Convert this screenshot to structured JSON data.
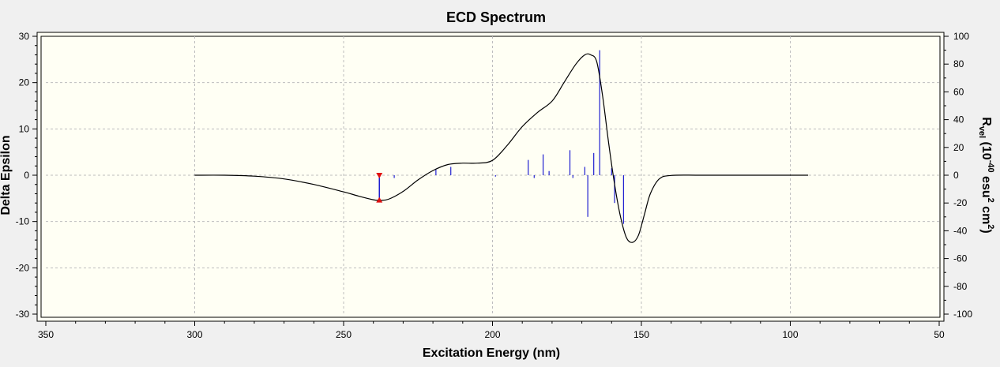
{
  "chart_data": {
    "type": "line",
    "title": "ECD Spectrum",
    "xlabel": "Excitation Energy (nm)",
    "ylabel_left": "Delta Epsilon",
    "ylabel_right": {
      "base": "R",
      "sub": "vel",
      "mid1": " (10",
      "sup1": "-40",
      "mid2": " esu",
      "sup2": "2",
      "mid3": " cm",
      "sup3": "2",
      "end": ")"
    },
    "xlim": [
      350,
      50
    ],
    "ylim_left": [
      -30,
      30
    ],
    "ylim_right": [
      -100,
      100
    ],
    "x_ticks": [
      350,
      300,
      250,
      200,
      150,
      100,
      50
    ],
    "y_ticks_left": [
      30,
      20,
      10,
      0,
      -10,
      -20,
      -30
    ],
    "y_ticks_right": [
      100,
      80,
      60,
      40,
      20,
      0,
      -20,
      -40,
      -60,
      -80,
      -100
    ],
    "grid": true,
    "colors": {
      "curve": "#000000",
      "sticks": "#1f1fd0",
      "marker": "#e01010",
      "plot_bg": "#fffff4"
    },
    "spectrum": {
      "name": "ECD",
      "x": [
        300,
        290,
        280,
        270,
        260,
        250,
        245,
        240,
        238,
        235,
        230,
        225,
        220,
        215,
        210,
        205,
        200,
        195,
        190,
        185,
        180,
        176,
        172,
        169,
        167,
        165,
        163,
        161,
        159,
        157,
        155,
        153,
        151,
        149,
        147,
        144,
        140,
        130,
        110,
        94
      ],
      "y": [
        0,
        0,
        -0.2,
        -0.8,
        -2,
        -3.6,
        -4.5,
        -5.3,
        -5.4,
        -5.2,
        -3.5,
        -1,
        1,
        2.3,
        2.6,
        2.6,
        3.2,
        6.5,
        10.5,
        13.5,
        16,
        20,
        24,
        26,
        26,
        24.5,
        17,
        7,
        -2,
        -9,
        -13.5,
        -14.5,
        -13,
        -8.5,
        -4,
        -0.8,
        -0.05,
        0,
        0,
        0
      ]
    },
    "rotatory_strengths": {
      "x": [
        238,
        233,
        219,
        214,
        199,
        188,
        186,
        183,
        181,
        174,
        173,
        169,
        168,
        166,
        164,
        160,
        159,
        156
      ],
      "r": [
        -18,
        -2,
        4,
        6,
        -1,
        11,
        -2,
        15,
        3,
        18,
        -2,
        6,
        -30,
        16,
        90,
        5,
        -20,
        -35
      ]
    },
    "marker": {
      "x": 238,
      "y_top": 0,
      "y_bottom": -5.4
    }
  }
}
